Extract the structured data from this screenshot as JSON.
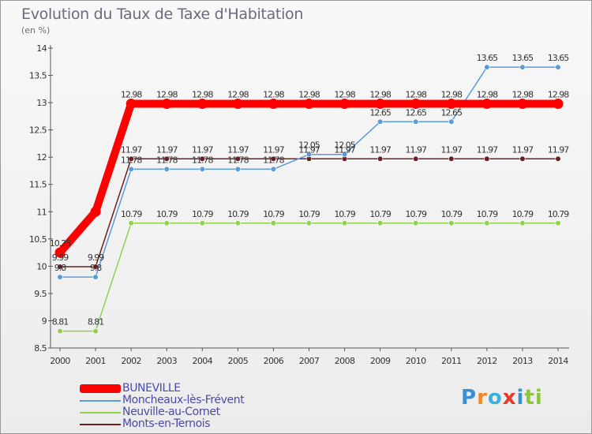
{
  "chart_data": {
    "type": "line",
    "title": "Evolution du Taux de Taxe d'Habitation",
    "subtitle": "(en %)",
    "x": [
      "2000",
      "2001",
      "2002",
      "2003",
      "2004",
      "2005",
      "2006",
      "2007",
      "2008",
      "2009",
      "2010",
      "2011",
      "2012",
      "2013",
      "2014"
    ],
    "ylim": [
      8.5,
      14
    ],
    "yticks": [
      "8.5",
      "9",
      "9.5",
      "10",
      "10.5",
      "11",
      "11.5",
      "12",
      "12.5",
      "13",
      "13.5",
      "14"
    ],
    "grid": false,
    "legend_position": "bottom-left",
    "series": [
      {
        "name": "BUNEVILLE",
        "color": "#ff0000",
        "values": [
          10.25,
          11.0,
          12.98,
          12.98,
          12.98,
          12.98,
          12.98,
          12.98,
          12.98,
          12.98,
          12.98,
          12.98,
          12.98,
          12.98,
          12.98
        ],
        "labels": [
          "10.25",
          "",
          "12.98",
          "12.98",
          "12.98",
          "12.98",
          "12.98",
          "12.98",
          "12.98",
          "12.98",
          "12.98",
          "12.98",
          "12.98",
          "12.98",
          "12.98"
        ]
      },
      {
        "name": "Moncheaux-lès-Frévent",
        "color": "#5b9bd5",
        "values": [
          9.8,
          9.8,
          11.78,
          11.78,
          11.78,
          11.78,
          11.78,
          12.05,
          12.05,
          12.65,
          12.65,
          12.65,
          13.65,
          13.65,
          13.65
        ],
        "labels": [
          "9.8",
          "9.8",
          "11.78",
          "11.78",
          "11.78",
          "11.78",
          "11.78",
          "12.05",
          "12.05",
          "12.65",
          "12.65",
          "12.65",
          "13.65",
          "13.65",
          "13.65"
        ]
      },
      {
        "name": "Neuville-au-Cornet",
        "color": "#92d050",
        "values": [
          8.81,
          8.81,
          10.79,
          10.79,
          10.79,
          10.79,
          10.79,
          10.79,
          10.79,
          10.79,
          10.79,
          10.79,
          10.79,
          10.79,
          10.79
        ],
        "labels": [
          "8.81",
          "8.81",
          "10.79",
          "10.79",
          "10.79",
          "10.79",
          "10.79",
          "10.79",
          "10.79",
          "10.79",
          "10.79",
          "10.79",
          "10.79",
          "10.79",
          "10.79"
        ]
      },
      {
        "name": "Monts-en-Ternois",
        "color": "#6b1f1f",
        "values": [
          9.99,
          9.99,
          11.97,
          11.97,
          11.97,
          11.97,
          11.97,
          11.97,
          11.97,
          11.97,
          11.97,
          11.97,
          11.97,
          11.97,
          11.97
        ],
        "labels": [
          "9.99",
          "9.99",
          "11.97",
          "11.97",
          "11.97",
          "11.97",
          "11.97",
          "11.97",
          "11.97",
          "11.97",
          "11.97",
          "11.97",
          "11.97",
          "11.97",
          "11.97"
        ]
      }
    ]
  },
  "logo": {
    "letters": [
      "P",
      "r",
      "o",
      "x",
      "i",
      "ti"
    ]
  }
}
